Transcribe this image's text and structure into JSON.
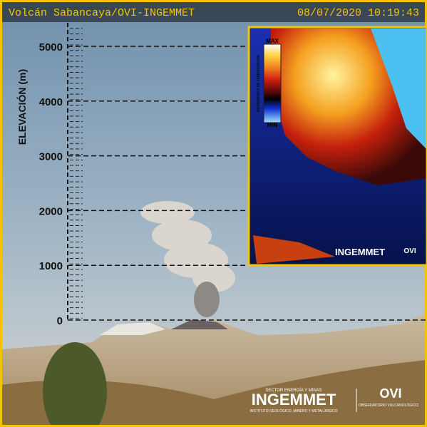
{
  "header": {
    "title": "Volcán Sabancaya/OVI-INGEMMET",
    "timestamp": "08/07/2020 10:19:43"
  },
  "elevation_scale": {
    "label": "ELEVACIÓN (m)",
    "ticks": [
      5000,
      4000,
      3000,
      2000,
      1000,
      0
    ]
  },
  "thermal_inset": {
    "max_label": "MAX",
    "min_label": "MIN",
    "legend_title": "INCREMENTO DE TEMPERATURA",
    "logo": "INGEMMET",
    "logo2": "OVI"
  },
  "footer_logos": {
    "sector": "SECTOR ENERGÍA Y MINAS",
    "ingemmet": "INGEMMET",
    "institute": "INSTITUTO GEOLÓGICO, MINERO Y METALÚRGICO",
    "ovi": "OVI",
    "observatory": "OBSERVATORIO VULCANOLÓGICO"
  }
}
